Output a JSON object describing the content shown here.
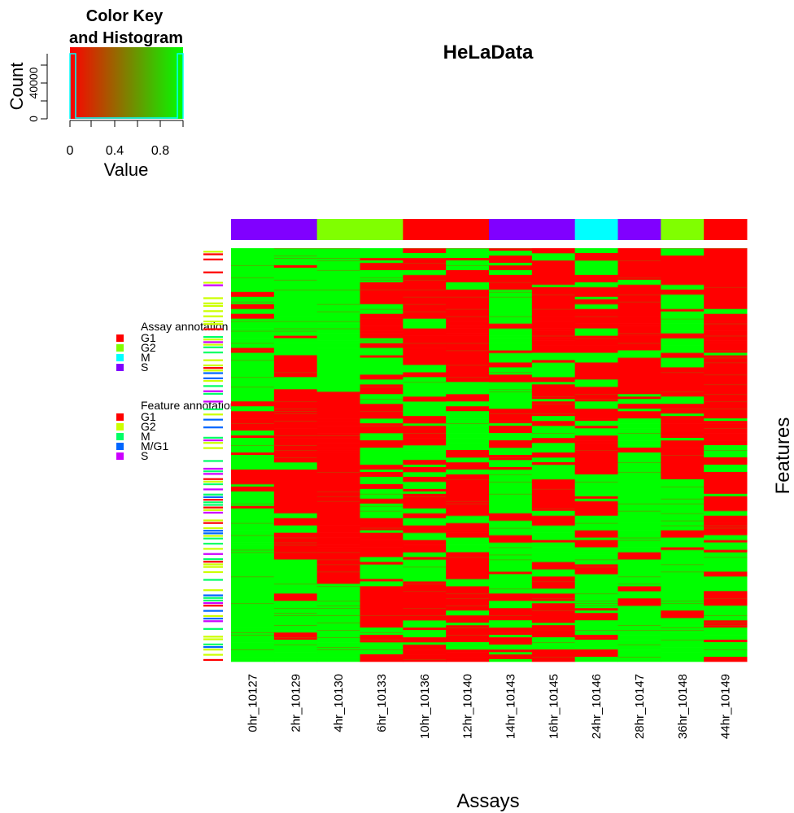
{
  "chart_data": {
    "type": "heatmap",
    "title": "HeLaData",
    "xlabel": "Assays",
    "ylabel": "Features",
    "color_scale": {
      "low": "#FF0000",
      "high": "#00FF00",
      "range": [
        0,
        1
      ]
    },
    "columns": [
      "0hr_10127",
      "2hr_10129",
      "4hr_10130",
      "6hr_10133",
      "10hr_10136",
      "12hr_10140",
      "14hr_10143",
      "16hr_10145",
      "24hr_10146",
      "28hr_10147",
      "36hr_10148",
      "44hr_10149"
    ],
    "assay_annotation": [
      "S",
      "S",
      "G2",
      "G2",
      "G1",
      "G1",
      "S",
      "S",
      "M",
      "S",
      "G2",
      "G1"
    ],
    "feature_annotation_levels": [
      "G1",
      "G2",
      "M",
      "M/G1",
      "S"
    ],
    "color_key": {
      "title": "Color Key\nand Histogram",
      "title_line1": "Color Key",
      "title_line2": "and Histogram",
      "xlabel": "Value",
      "ylabel": "Count",
      "xticks": [
        "0",
        "0.4",
        "0.8"
      ],
      "yticks": [
        "0",
        "40000"
      ],
      "histogram": [
        {
          "bin": [
            0,
            0.05
          ],
          "count": 80000
        },
        {
          "bin": [
            0.05,
            0.95
          ],
          "count": 1000
        },
        {
          "bin": [
            0.95,
            1.0
          ],
          "count": 80000
        }
      ]
    }
  },
  "legend": {
    "assay_title": "Assay annotation",
    "assay_items": [
      {
        "label": "G1",
        "color": "#FF0000"
      },
      {
        "label": "G2",
        "color": "#80FF00"
      },
      {
        "label": "M",
        "color": "#00FFFF"
      },
      {
        "label": "S",
        "color": "#8000FF"
      }
    ],
    "feature_title": "Feature annotation",
    "feature_items": [
      {
        "label": "G1",
        "color": "#FF0000"
      },
      {
        "label": "G2",
        "color": "#CCFF00"
      },
      {
        "label": "M",
        "color": "#00FF66"
      },
      {
        "label": "M/G1",
        "color": "#0066FF"
      },
      {
        "label": "S",
        "color": "#CC00FF"
      }
    ]
  },
  "colors": {
    "red": "#FF0000",
    "green": "#00FF00",
    "assay": {
      "G1": "#FF0000",
      "G2": "#80FF00",
      "M": "#00FFFF",
      "S": "#8000FF"
    },
    "feature": {
      "G1": "#FF0000",
      "G2": "#CCFF00",
      "M": "#00FF66",
      "M/G1": "#0066FF",
      "S": "#CC00FF"
    }
  }
}
